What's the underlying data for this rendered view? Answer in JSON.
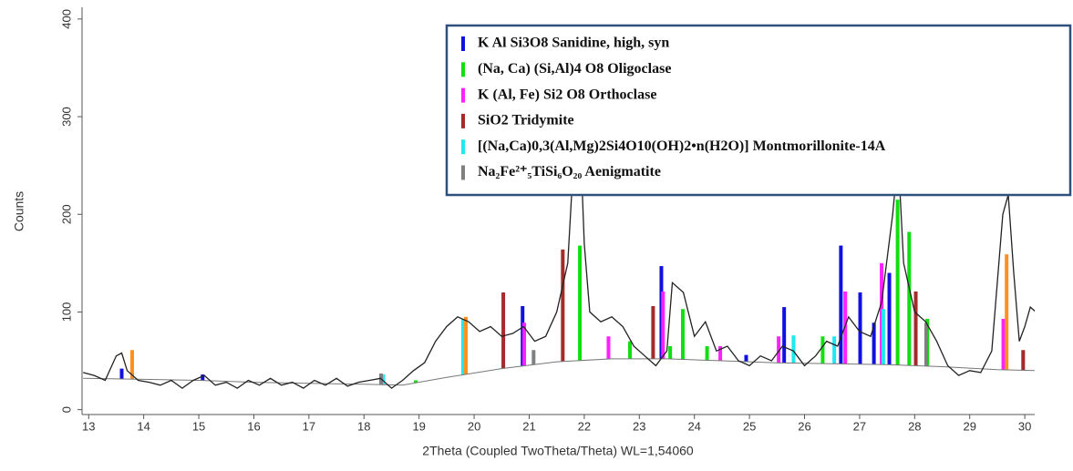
{
  "chart_data": {
    "type": "line",
    "x_label": "2Theta (Coupled TwoTheta/Theta) WL=1,54060",
    "y_label": "Counts",
    "xlim": [
      12.88,
      30.18
    ],
    "ylim": [
      -5,
      412
    ],
    "xticks": [
      13,
      14,
      15,
      16,
      17,
      18,
      19,
      20,
      21,
      22,
      23,
      24,
      25,
      26,
      27,
      28,
      29,
      30
    ],
    "yticks": [
      0,
      100,
      200,
      300,
      400
    ],
    "series": [
      {
        "color": "#222222",
        "x": [
          12.9,
          13.1,
          13.3,
          13.5,
          13.6,
          13.7,
          13.9,
          14.1,
          14.3,
          14.5,
          14.7,
          14.9,
          15.1,
          15.3,
          15.5,
          15.7,
          15.9,
          16.1,
          16.3,
          16.5,
          16.7,
          16.9,
          17.1,
          17.3,
          17.5,
          17.7,
          17.9,
          18.1,
          18.3,
          18.5,
          18.7,
          18.9,
          19.1,
          19.3,
          19.5,
          19.7,
          19.9,
          20.1,
          20.3,
          20.5,
          20.7,
          20.9,
          21.1,
          21.3,
          21.5,
          21.7,
          21.8,
          21.9,
          22.0,
          22.1,
          22.3,
          22.5,
          22.7,
          22.9,
          23.1,
          23.3,
          23.5,
          23.6,
          23.8,
          24.0,
          24.2,
          24.4,
          24.6,
          24.8,
          25.0,
          25.2,
          25.4,
          25.6,
          25.8,
          26.0,
          26.2,
          26.4,
          26.6,
          26.8,
          27.0,
          27.2,
          27.4,
          27.6,
          27.7,
          27.8,
          28.0,
          28.2,
          28.4,
          28.6,
          28.8,
          29.0,
          29.2,
          29.4,
          29.6,
          29.7,
          29.8,
          29.9,
          30.0,
          30.1,
          30.2
        ],
        "values": [
          38,
          35,
          30,
          55,
          58,
          40,
          30,
          28,
          25,
          30,
          22,
          30,
          35,
          25,
          28,
          22,
          30,
          25,
          32,
          25,
          28,
          22,
          30,
          25,
          32,
          24,
          28,
          30,
          32,
          22,
          30,
          40,
          48,
          70,
          85,
          95,
          90,
          80,
          85,
          75,
          78,
          85,
          70,
          75,
          100,
          150,
          250,
          320,
          170,
          100,
          90,
          95,
          85,
          65,
          55,
          45,
          60,
          130,
          120,
          75,
          90,
          60,
          65,
          50,
          45,
          55,
          50,
          65,
          60,
          45,
          55,
          70,
          65,
          95,
          80,
          75,
          110,
          200,
          260,
          150,
          100,
          90,
          70,
          45,
          35,
          40,
          38,
          60,
          200,
          220,
          140,
          70,
          85,
          105,
          100
        ]
      },
      {
        "color": "#777777",
        "x": [
          12.9,
          14,
          15,
          16,
          17,
          18,
          18.7,
          19.5,
          20.5,
          21.5,
          22.5,
          23.5,
          24.5,
          25.5,
          26.5,
          27.5,
          28.5,
          29.5,
          30.2
        ],
        "values": [
          32,
          31,
          30,
          28,
          27,
          26,
          25,
          33,
          42,
          49,
          52,
          52,
          50,
          48,
          47,
          46,
          44,
          41,
          40
        ]
      }
    ],
    "phases": [
      {
        "name": "K Al Si3O8 Sanidine, high, syn",
        "color": "#1010e0",
        "x": [
          13.6,
          15.07,
          20.88,
          23.4,
          24.94,
          25.63,
          26.66,
          27.01,
          27.26,
          27.54
        ],
        "values": [
          42,
          36,
          106,
          147,
          56,
          105,
          168,
          120,
          89,
          140
        ]
      },
      {
        "name": "(Na, Ca)  (Si,Al)4 O8 Oligoclase",
        "color": "#10e010",
        "x": [
          18.94,
          21.92,
          22.83,
          23.56,
          23.79,
          24.23,
          26.33,
          27.69,
          27.9,
          28.23
        ],
        "values": [
          30,
          168,
          70,
          65,
          103,
          65,
          75,
          215,
          182,
          93
        ]
      },
      {
        "name": "K  (Al, Fe) Si2 O8 Orthoclase",
        "color": "#ff20ff",
        "x": [
          20.91,
          22.44,
          23.43,
          24.47,
          25.53,
          26.74,
          27.4,
          29.61
        ],
        "values": [
          89,
          75,
          121,
          65,
          75,
          121,
          150,
          93
        ]
      },
      {
        "name": "SiO2 Tridymite",
        "color": "#a52a2a",
        "x": [
          20.53,
          21.61,
          23.25,
          28.02,
          29.97
        ],
        "values": [
          120,
          164,
          106,
          121,
          61
        ]
      },
      {
        "name": "[(Na,Ca)0,3(Al,Mg)2Si4O10(OH)2•n(H2O)] Montmorillonite-14A",
        "color": "#20e8f0",
        "x": [
          18.35,
          19.8,
          25.8,
          26.54,
          27.43
        ],
        "values": [
          36,
          93,
          76,
          75,
          103
        ]
      },
      {
        "name": "Na₂Fe²⁺₅TiSi₆O₂₀ Aenigmatite",
        "color": "#808080",
        "x": [
          18.31,
          21.08,
          28.21
        ],
        "values": [
          37,
          61,
          89
        ]
      },
      {
        "color": "#ff9020",
        "x": [
          13.79,
          29.67,
          19.85
        ],
        "values": [
          61,
          159,
          95
        ]
      }
    ]
  }
}
